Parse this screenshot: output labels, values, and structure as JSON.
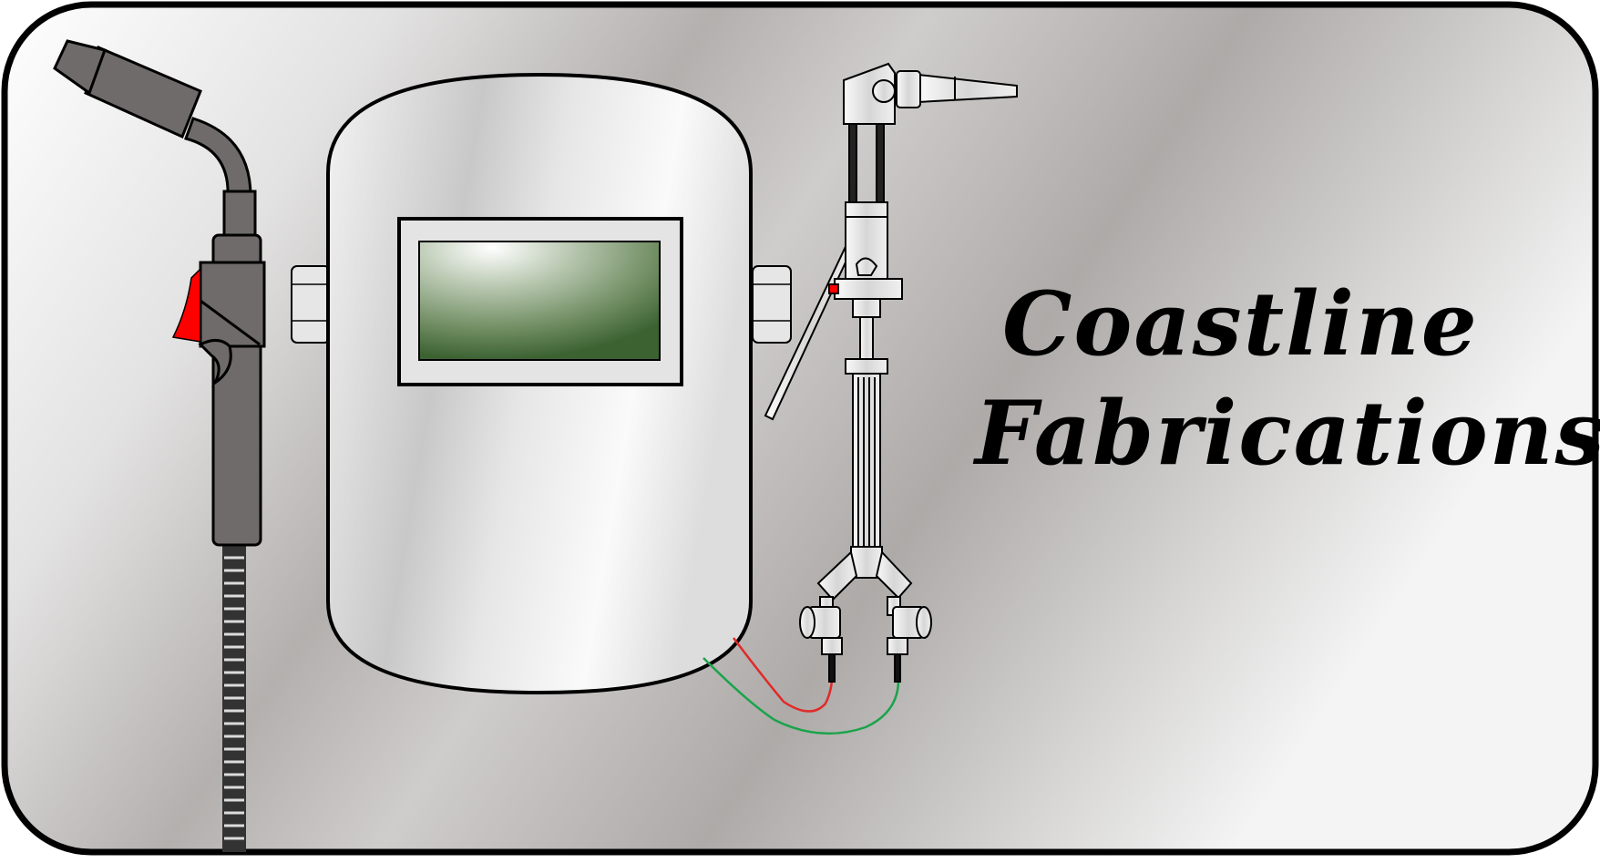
{
  "logo": {
    "title_line_1": "Coastline",
    "title_line_2": "Fabrications"
  },
  "colors": {
    "frame_border": "#000000",
    "background_light": "#f7f7f7",
    "background_mid": "#a9a6a4",
    "torch_body": "#6e6b6a",
    "trigger": "#ff0000",
    "lens_dark": "#3c6232",
    "hose_red": "#e02a2a",
    "hose_green": "#1aa34a"
  },
  "icons": [
    "mig-welding-gun-icon",
    "welding-helmet-icon",
    "oxy-acetylene-torch-icon"
  ]
}
